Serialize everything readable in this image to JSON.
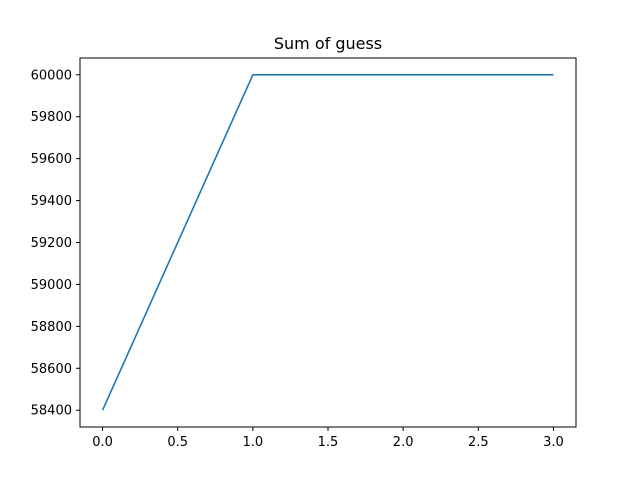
{
  "chart_data": {
    "type": "line",
    "title": "Sum of guess",
    "xlabel": "",
    "ylabel": "",
    "grid": false,
    "xlim": [
      -0.15,
      3.15
    ],
    "ylim": [
      58320,
      60080
    ],
    "x_ticks": [
      0.0,
      0.5,
      1.0,
      1.5,
      2.0,
      2.5,
      3.0
    ],
    "x_tick_labels": [
      "0.0",
      "0.5",
      "1.0",
      "1.5",
      "2.0",
      "2.5",
      "3.0"
    ],
    "y_ticks": [
      58400,
      58600,
      58800,
      59000,
      59200,
      59400,
      59600,
      59800,
      60000
    ],
    "y_tick_labels": [
      "58400",
      "58600",
      "58800",
      "59000",
      "59200",
      "59400",
      "59600",
      "59800",
      "60000"
    ],
    "series": [
      {
        "color": "#1f77b4",
        "x": [
          0,
          1,
          2,
          3
        ],
        "y": [
          58400,
          60000,
          60000,
          60000
        ]
      }
    ]
  }
}
